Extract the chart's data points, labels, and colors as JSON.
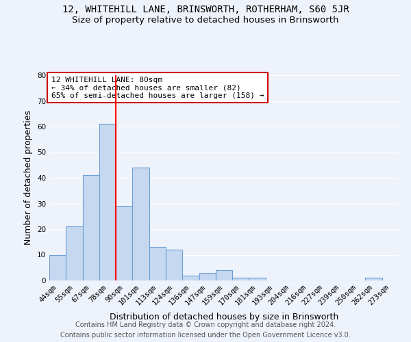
{
  "title": "12, WHITEHILL LANE, BRINSWORTH, ROTHERHAM, S60 5JR",
  "subtitle": "Size of property relative to detached houses in Brinsworth",
  "xlabel": "Distribution of detached houses by size in Brinsworth",
  "ylabel": "Number of detached properties",
  "bar_labels": [
    "44sqm",
    "55sqm",
    "67sqm",
    "78sqm",
    "90sqm",
    "101sqm",
    "113sqm",
    "124sqm",
    "136sqm",
    "147sqm",
    "159sqm",
    "170sqm",
    "181sqm",
    "193sqm",
    "204sqm",
    "216sqm",
    "227sqm",
    "239sqm",
    "250sqm",
    "262sqm",
    "273sqm"
  ],
  "bar_values": [
    10,
    21,
    41,
    61,
    29,
    44,
    13,
    12,
    2,
    3,
    4,
    1,
    1,
    0,
    0,
    0,
    0,
    0,
    0,
    1,
    0
  ],
  "bar_color": "#c5d8f0",
  "bar_edge_color": "#6a9fd8",
  "bar_edge_width": 0.8,
  "red_line_x": 3.5,
  "annotation_title": "12 WHITEHILL LANE: 80sqm",
  "annotation_line1": "← 34% of detached houses are smaller (82)",
  "annotation_line2": "65% of semi-detached houses are larger (158) →",
  "annotation_box_color": "#ffffff",
  "annotation_edge_color": "#cc0000",
  "ylim": [
    0,
    80
  ],
  "yticks": [
    0,
    10,
    20,
    30,
    40,
    50,
    60,
    70,
    80
  ],
  "footer_line1": "Contains HM Land Registry data © Crown copyright and database right 2024.",
  "footer_line2": "Contains public sector information licensed under the Open Government Licence v3.0.",
  "background_color": "#eef2fa",
  "grid_color": "#ffffff",
  "title_fontsize": 10,
  "subtitle_fontsize": 9.5,
  "axis_label_fontsize": 9,
  "tick_fontsize": 7.5,
  "footer_fontsize": 7,
  "ann_fontsize": 8
}
